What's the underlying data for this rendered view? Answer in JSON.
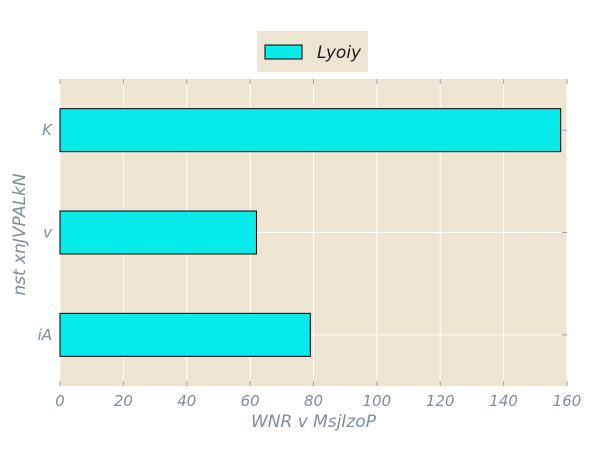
{
  "chart_data": {
    "type": "bar",
    "orientation": "horizontal",
    "categories": [
      "K",
      "v",
      "iA"
    ],
    "series": [
      {
        "name": "Lyoiy",
        "values": [
          158,
          62,
          79
        ]
      }
    ],
    "xlabel": "WNR v MsjIzoP",
    "ylabel": "nst xnJVPALkN",
    "xlim": [
      0,
      160
    ],
    "xticks": [
      0,
      20,
      40,
      60,
      80,
      100,
      120,
      140,
      160
    ],
    "grid": true,
    "legend_position": "top-center",
    "colors": {
      "bar_fill": "#07ebeb",
      "bar_stroke": "#000000",
      "plot_background": "#ede5d2",
      "legend_background": "#ede5d2",
      "grid": "#ffffff",
      "label_text": "#7f8c99"
    }
  }
}
